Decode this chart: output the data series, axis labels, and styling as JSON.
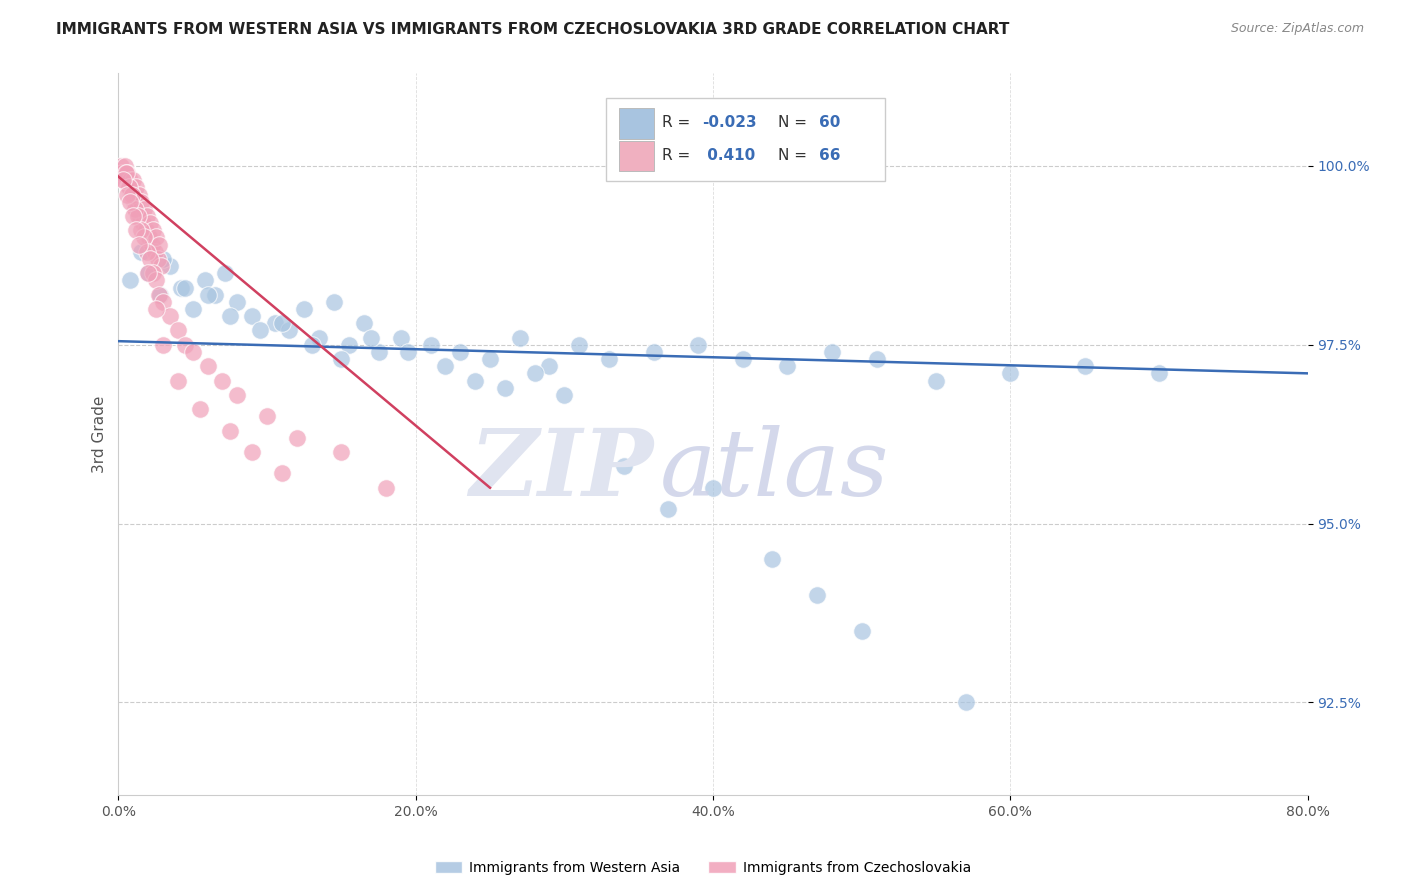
{
  "title": "IMMIGRANTS FROM WESTERN ASIA VS IMMIGRANTS FROM CZECHOSLOVAKIA 3RD GRADE CORRELATION CHART",
  "source": "Source: ZipAtlas.com",
  "ylabel": "3rd Grade",
  "xlim": [
    0.0,
    80.0
  ],
  "ylim": [
    91.2,
    101.3
  ],
  "ytick_vals": [
    92.5,
    95.0,
    97.5,
    100.0
  ],
  "ytick_labels": [
    "92.5%",
    "95.0%",
    "97.5%",
    "100.0%"
  ],
  "xtick_vals": [
    0,
    20,
    40,
    60,
    80
  ],
  "xtick_labels": [
    "0.0%",
    "20.0%",
    "40.0%",
    "60.0%",
    "80.0%"
  ],
  "blue_color": "#a8c4e0",
  "pink_color": "#f0a0b8",
  "blue_line_color": "#3a6cb5",
  "pink_line_color": "#d04060",
  "legend_blue_fill": "#a8c4e0",
  "legend_pink_fill": "#f0b0c0",
  "value_color": "#3a6cb5",
  "label_color": "#333333",
  "bottom_label1": "Immigrants from Western Asia",
  "bottom_label2": "Immigrants from Czechoslovakia",
  "blue_x": [
    0.8,
    1.5,
    2.0,
    2.8,
    3.5,
    4.2,
    5.0,
    5.8,
    6.5,
    7.2,
    8.0,
    9.0,
    10.5,
    11.5,
    12.5,
    13.5,
    14.5,
    15.5,
    16.5,
    17.5,
    19.0,
    21.0,
    23.0,
    25.0,
    27.0,
    29.0,
    31.0,
    33.0,
    36.0,
    39.0,
    42.0,
    45.0,
    48.0,
    51.0,
    55.0,
    60.0,
    65.0,
    70.0,
    3.0,
    4.5,
    6.0,
    7.5,
    9.5,
    11.0,
    13.0,
    15.0,
    17.0,
    19.5,
    22.0,
    24.0,
    26.0,
    28.0,
    30.0,
    34.0,
    37.0,
    40.0,
    44.0,
    47.0,
    50.0,
    57.0
  ],
  "blue_y": [
    98.4,
    98.8,
    98.5,
    98.2,
    98.6,
    98.3,
    98.0,
    98.4,
    98.2,
    98.5,
    98.1,
    97.9,
    97.8,
    97.7,
    98.0,
    97.6,
    98.1,
    97.5,
    97.8,
    97.4,
    97.6,
    97.5,
    97.4,
    97.3,
    97.6,
    97.2,
    97.5,
    97.3,
    97.4,
    97.5,
    97.3,
    97.2,
    97.4,
    97.3,
    97.0,
    97.1,
    97.2,
    97.1,
    98.7,
    98.3,
    98.2,
    97.9,
    97.7,
    97.8,
    97.5,
    97.3,
    97.6,
    97.4,
    97.2,
    97.0,
    96.9,
    97.1,
    96.8,
    95.8,
    95.2,
    95.5,
    94.5,
    94.0,
    93.5,
    92.5
  ],
  "pink_x": [
    0.15,
    0.25,
    0.35,
    0.45,
    0.55,
    0.65,
    0.75,
    0.85,
    0.95,
    1.05,
    1.15,
    1.25,
    1.35,
    1.45,
    1.55,
    1.65,
    1.75,
    1.85,
    1.95,
    2.05,
    2.15,
    2.25,
    2.35,
    2.45,
    2.55,
    2.65,
    2.75,
    2.85,
    0.5,
    0.7,
    0.9,
    1.1,
    1.3,
    1.5,
    1.7,
    1.9,
    2.1,
    2.3,
    2.5,
    2.7,
    3.0,
    3.5,
    4.0,
    4.5,
    5.0,
    6.0,
    7.0,
    8.0,
    10.0,
    12.0,
    15.0,
    18.0,
    0.3,
    0.6,
    0.8,
    1.0,
    1.2,
    1.4,
    2.0,
    2.5,
    3.0,
    4.0,
    5.5,
    7.5,
    9.0,
    11.0
  ],
  "pink_y": [
    100.0,
    99.9,
    99.8,
    100.0,
    99.9,
    99.7,
    99.8,
    99.6,
    99.8,
    99.5,
    99.7,
    99.4,
    99.6,
    99.3,
    99.5,
    99.2,
    99.4,
    99.1,
    99.3,
    99.0,
    99.2,
    98.9,
    99.1,
    98.8,
    99.0,
    98.7,
    98.9,
    98.6,
    99.9,
    99.7,
    99.6,
    99.4,
    99.3,
    99.1,
    99.0,
    98.8,
    98.7,
    98.5,
    98.4,
    98.2,
    98.1,
    97.9,
    97.7,
    97.5,
    97.4,
    97.2,
    97.0,
    96.8,
    96.5,
    96.2,
    96.0,
    95.5,
    99.8,
    99.6,
    99.5,
    99.3,
    99.1,
    98.9,
    98.5,
    98.0,
    97.5,
    97.0,
    96.6,
    96.3,
    96.0,
    95.7
  ],
  "blue_trend_x": [
    0.0,
    80.0
  ],
  "blue_trend_y": [
    97.55,
    97.1
  ],
  "pink_trend_x": [
    0.0,
    25.0
  ],
  "pink_trend_y": [
    99.85,
    95.5
  ]
}
